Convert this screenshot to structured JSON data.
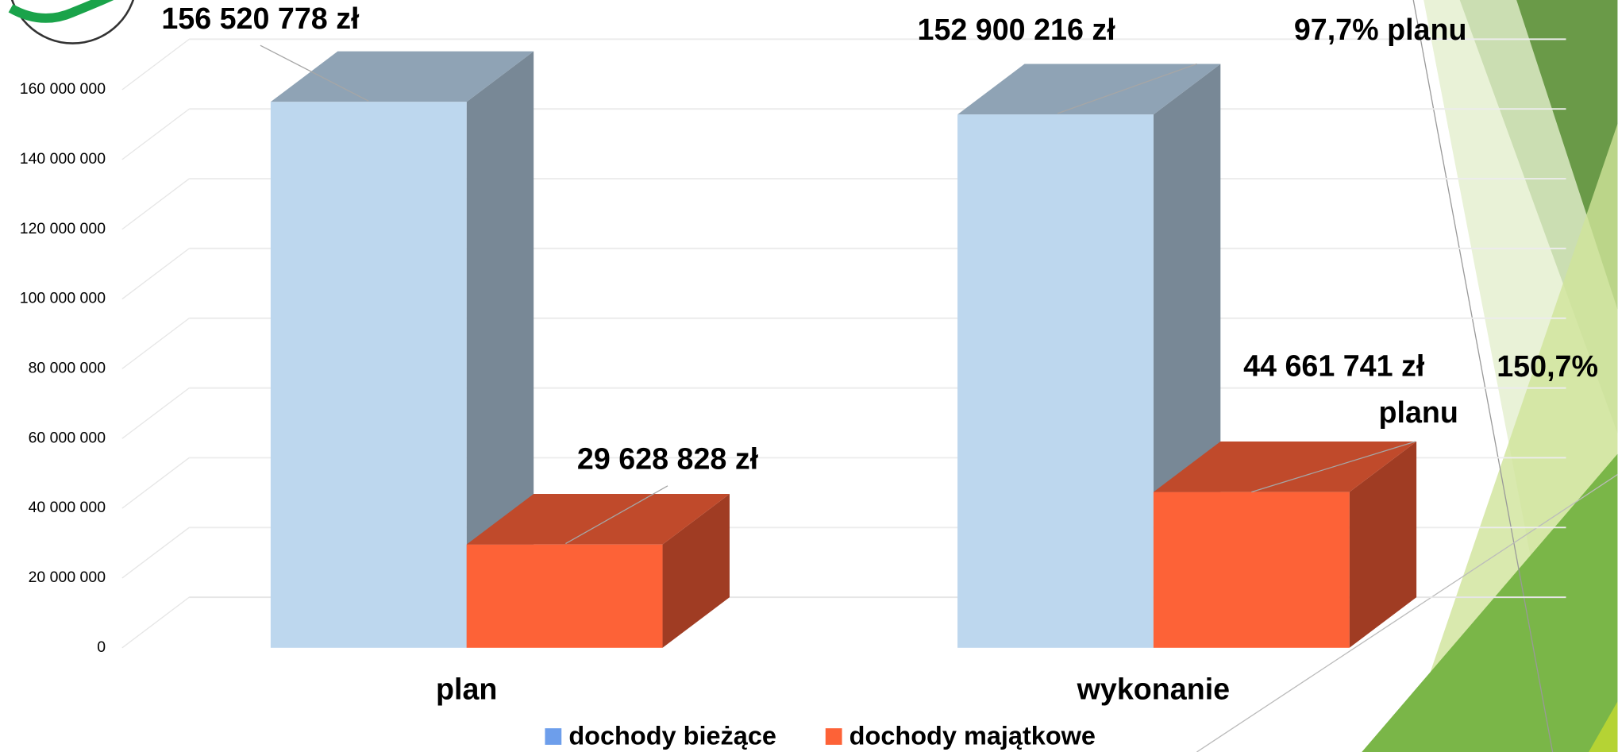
{
  "chart_data": {
    "type": "bar3d",
    "categories": [
      "plan",
      "wykonanie"
    ],
    "series": [
      {
        "name": "dochody bieżące",
        "color": "#bdd7ee",
        "top_color": "#8fa3b5",
        "side_color": "#788896",
        "legend_color": "#6d9eeb",
        "values": [
          156520778,
          152900216
        ],
        "value_labels": [
          "156 520 778 zł",
          "152 900 216 zł"
        ]
      },
      {
        "name": "dochody majątkowe",
        "color": "#fd6237",
        "top_color": "#c04a2b",
        "side_color": "#a03c23",
        "legend_color": "#fd6237",
        "values": [
          29628828,
          44661741
        ],
        "value_labels": [
          "29 628 828 zł",
          "44 661 741 zł"
        ]
      }
    ],
    "annotations": [
      "97,7% planu",
      "150,7% planu"
    ],
    "ylim": [
      0,
      160000000
    ],
    "yticks": [
      0,
      {
        "value": 20000000,
        "label": "20 000 000"
      },
      {
        "value": 40000000,
        "label": "40 000 000"
      },
      {
        "value": 60000000,
        "label": "60 000 000"
      },
      {
        "value": 80000000,
        "label": "80 000 000"
      },
      {
        "value": 100000000,
        "label": "100 000 000"
      },
      {
        "value": 120000000,
        "label": "120 000 000"
      },
      {
        "value": 140000000,
        "label": "140 000 000"
      },
      {
        "value": 160000000,
        "label": "160 000 000"
      }
    ],
    "grid": true
  }
}
